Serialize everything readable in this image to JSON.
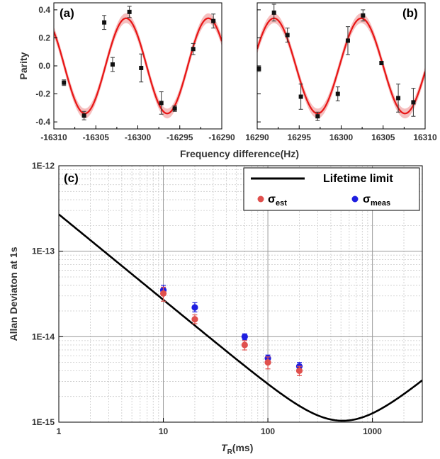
{
  "chart_data": [
    {
      "panel": "(a)",
      "type": "scatter",
      "xlabel": "Frequency difference(Hz)",
      "ylabel": "Parity",
      "xlim": [
        -16310,
        -16290
      ],
      "ylim": [
        -0.45,
        0.45
      ],
      "xticks": [
        -16310,
        -16305,
        -16300,
        -16295,
        -16290
      ],
      "yticks": [
        -0.4,
        -0.2,
        0.0,
        0.2,
        0.4
      ],
      "points": [
        {
          "x": -16308.8,
          "y": -0.12,
          "err": 0.02
        },
        {
          "x": -16306.4,
          "y": -0.355,
          "err": 0.03
        },
        {
          "x": -16304.0,
          "y": 0.31,
          "err": 0.05
        },
        {
          "x": -16303.0,
          "y": 0.01,
          "err": 0.05
        },
        {
          "x": -16301.0,
          "y": 0.385,
          "err": 0.04
        },
        {
          "x": -16299.6,
          "y": -0.015,
          "err": 0.1
        },
        {
          "x": -16297.2,
          "y": -0.265,
          "err": 0.08
        },
        {
          "x": -16295.6,
          "y": -0.305,
          "err": 0.02
        },
        {
          "x": -16293.4,
          "y": 0.12,
          "err": 0.04
        },
        {
          "x": -16291.0,
          "y": 0.32,
          "err": 0.05
        }
      ],
      "fit": {
        "amplitude": 0.34,
        "period": 9.8,
        "peak_at": -16301.4,
        "band": 0.035
      }
    },
    {
      "panel": "(b)",
      "type": "scatter",
      "xlabel": "Frequency difference(Hz)",
      "ylabel": "Parity",
      "xlim": [
        16290,
        16310
      ],
      "ylim": [
        -0.45,
        0.45
      ],
      "xticks": [
        16290,
        16295,
        16300,
        16305,
        16310
      ],
      "yticks": [
        -0.4,
        -0.2,
        0.0,
        0.2,
        0.4
      ],
      "points": [
        {
          "x": 16290.2,
          "y": -0.02,
          "err": 0.02
        },
        {
          "x": 16292.0,
          "y": 0.38,
          "err": 0.06
        },
        {
          "x": 16293.6,
          "y": 0.22,
          "err": 0.05
        },
        {
          "x": 16295.2,
          "y": -0.22,
          "err": 0.09
        },
        {
          "x": 16297.2,
          "y": -0.36,
          "err": 0.03
        },
        {
          "x": 16299.6,
          "y": -0.2,
          "err": 0.05
        },
        {
          "x": 16300.8,
          "y": 0.18,
          "err": 0.1
        },
        {
          "x": 16302.6,
          "y": 0.36,
          "err": 0.04
        },
        {
          "x": 16304.8,
          "y": 0.02,
          "err": 0.01
        },
        {
          "x": 16306.8,
          "y": -0.23,
          "err": 0.1
        },
        {
          "x": 16308.6,
          "y": -0.26,
          "err": 0.1
        }
      ],
      "fit": {
        "amplitude": 0.34,
        "period": 10.4,
        "peak_at": 16292.0,
        "band": 0.035
      }
    },
    {
      "panel": "(c)",
      "type": "scatter",
      "xlabel_italic": "T",
      "xlabel_sub": "R",
      "xlabel_rest": "(ms)",
      "ylabel": "Allan Deviaton at 1s",
      "xscale": "log",
      "yscale": "log",
      "xlim": [
        1,
        3000
      ],
      "ylim": [
        1e-15,
        1e-12
      ],
      "xticks": [
        1,
        10,
        100,
        1000
      ],
      "xtick_labels": [
        "1",
        "10",
        "100",
        "1000"
      ],
      "yticks": [
        1e-15,
        1e-14,
        1e-13,
        1e-12
      ],
      "ytick_labels": [
        "1E-15",
        "1E-14",
        "1E-13",
        "1E-12"
      ],
      "grid": true,
      "legend_position": "top-right",
      "series": [
        {
          "name": "Lifetime limit",
          "kind": "line",
          "color": "#000000",
          "model": {
            "A": 2.7e-13,
            "B": 1e-18
          }
        },
        {
          "name": "σ",
          "subscript": "est",
          "kind": "points",
          "color": "#e0504d",
          "points": [
            {
              "x": 10,
              "y": 3.2e-14,
              "lo": 2.6e-14,
              "hi": 3.8e-14
            },
            {
              "x": 20,
              "y": 1.6e-14,
              "lo": 1.42e-14,
              "hi": 1.8e-14
            },
            {
              "x": 60,
              "y": 8e-15,
              "lo": 7e-15,
              "hi": 9e-15
            },
            {
              "x": 100,
              "y": 5e-15,
              "lo": 4.2e-15,
              "hi": 5.8e-15
            },
            {
              "x": 200,
              "y": 4e-15,
              "lo": 3.5e-15,
              "hi": 4.5e-15
            }
          ]
        },
        {
          "name": "σ",
          "subscript": "meas",
          "kind": "points",
          "color": "#1f1fe0",
          "points": [
            {
              "x": 10,
              "y": 3.5e-14,
              "lo": 3.1e-14,
              "hi": 4e-14
            },
            {
              "x": 20,
              "y": 2.2e-14,
              "lo": 1.95e-14,
              "hi": 2.5e-14
            },
            {
              "x": 60,
              "y": 1e-14,
              "lo": 9.2e-15,
              "hi": 1.08e-14
            },
            {
              "x": 100,
              "y": 5.6e-15,
              "lo": 5.1e-15,
              "hi": 6.1e-15
            },
            {
              "x": 200,
              "y": 4.5e-15,
              "lo": 4e-15,
              "hi": 5e-15
            }
          ]
        }
      ]
    }
  ]
}
